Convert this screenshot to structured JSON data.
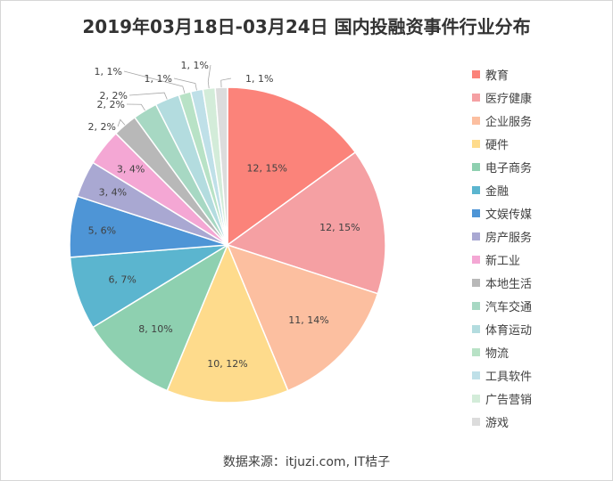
{
  "chart_data": {
    "type": "pie",
    "title": "2019年03月18日-03月24日  国内投融资事件行业分布",
    "source": "数据来源：itjuzi.com, IT桔子",
    "legend_position": "right",
    "slices": [
      {
        "name": "教育",
        "value": 12,
        "pct": 15,
        "label": "12, 15%",
        "color": "#fb837a"
      },
      {
        "name": "医疗健康",
        "value": 12,
        "pct": 15,
        "label": "12, 15%",
        "color": "#f5a0a3"
      },
      {
        "name": "企业服务",
        "value": 11,
        "pct": 14,
        "label": "11, 14%",
        "color": "#fcbfa0"
      },
      {
        "name": "硬件",
        "value": 10,
        "pct": 12,
        "label": "10, 12%",
        "color": "#fedb8c"
      },
      {
        "name": "电子商务",
        "value": 8,
        "pct": 10,
        "label": "8, 10%",
        "color": "#8ed0b0"
      },
      {
        "name": "金融",
        "value": 6,
        "pct": 7,
        "label": "6, 7%",
        "color": "#5bb5cf"
      },
      {
        "name": "文娱传媒",
        "value": 5,
        "pct": 6,
        "label": "5, 6%",
        "color": "#4e95d6"
      },
      {
        "name": "房产服务",
        "value": 3,
        "pct": 4,
        "label": "3, 4%",
        "color": "#a9a8d2"
      },
      {
        "name": "新工业",
        "value": 3,
        "pct": 4,
        "label": "3, 4%",
        "color": "#f4a7d4"
      },
      {
        "name": "本地生活",
        "value": 2,
        "pct": 2,
        "label": "2, 2%",
        "color": "#b8b8b8"
      },
      {
        "name": "汽车交通",
        "value": 2,
        "pct": 2,
        "label": "2, 2%",
        "color": "#a7d8c3"
      },
      {
        "name": "体育运动",
        "value": 2,
        "pct": 2,
        "label": "2, 2%",
        "color": "#b3dcdf"
      },
      {
        "name": "物流",
        "value": 1,
        "pct": 1,
        "label": "1, 1%",
        "color": "#b8e2c6"
      },
      {
        "name": "工具软件",
        "value": 1,
        "pct": 1,
        "label": "1, 1%",
        "color": "#bfe0e8"
      },
      {
        "name": "广告营销",
        "value": 1,
        "pct": 1,
        "label": "1, 1%",
        "color": "#d3ecd9"
      },
      {
        "name": "游戏",
        "value": 1,
        "pct": 1,
        "label": "1, 1%",
        "color": "#dcdcdc"
      }
    ]
  }
}
